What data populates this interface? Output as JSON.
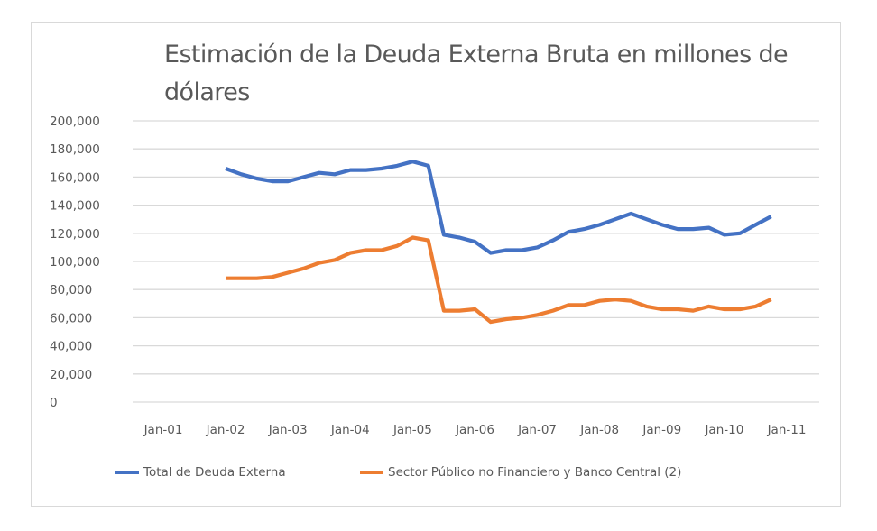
{
  "chart_data": {
    "type": "line",
    "title": "Estimación de la Deuda Externa Bruta en millones de dólares",
    "xlabel": "",
    "ylabel": "",
    "ylim": [
      0,
      200000
    ],
    "xlim": [
      2001.0,
      2011.0
    ],
    "grid": true,
    "legend_position": "bottom",
    "y_ticks": [
      {
        "value": 0,
        "label": "0"
      },
      {
        "value": 20000,
        "label": "20,000"
      },
      {
        "value": 40000,
        "label": "40,000"
      },
      {
        "value": 60000,
        "label": "60,000"
      },
      {
        "value": 80000,
        "label": "80,000"
      },
      {
        "value": 100000,
        "label": "100,000"
      },
      {
        "value": 120000,
        "label": "120,000"
      },
      {
        "value": 140000,
        "label": "140,000"
      },
      {
        "value": 160000,
        "label": "160,000"
      },
      {
        "value": 180000,
        "label": "180,000"
      },
      {
        "value": 200000,
        "label": "200,000"
      }
    ],
    "x_ticks": [
      {
        "value": 2001,
        "label": "Jan-01"
      },
      {
        "value": 2002,
        "label": "Jan-02"
      },
      {
        "value": 2003,
        "label": "Jan-03"
      },
      {
        "value": 2004,
        "label": "Jan-04"
      },
      {
        "value": 2005,
        "label": "Jan-05"
      },
      {
        "value": 2006,
        "label": "Jan-06"
      },
      {
        "value": 2007,
        "label": "Jan-07"
      },
      {
        "value": 2008,
        "label": "Jan-08"
      },
      {
        "value": 2009,
        "label": "Jan-09"
      },
      {
        "value": 2010,
        "label": "Jan-10"
      },
      {
        "value": 2011,
        "label": "Jan-11"
      }
    ],
    "x": [
      2002.0,
      2002.25,
      2002.5,
      2002.75,
      2003.0,
      2003.25,
      2003.5,
      2003.75,
      2004.0,
      2004.25,
      2004.5,
      2004.75,
      2005.0,
      2005.25,
      2005.5,
      2005.75,
      2006.0,
      2006.25,
      2006.5,
      2006.75,
      2007.0,
      2007.25,
      2007.5,
      2007.75,
      2008.0,
      2008.25,
      2008.5,
      2008.75,
      2009.0,
      2009.25,
      2009.5,
      2009.75,
      2010.0,
      2010.25,
      2010.5,
      2010.75
    ],
    "series": [
      {
        "name": "Total de Deuda Externa",
        "color": "#4472c4",
        "values": [
          166000,
          162000,
          159000,
          157000,
          157000,
          160000,
          163000,
          162000,
          165000,
          165000,
          166000,
          168000,
          171000,
          168000,
          119000,
          117000,
          114000,
          106000,
          108000,
          108000,
          110000,
          115000,
          121000,
          123000,
          126000,
          130000,
          134000,
          130000,
          126000,
          123000,
          123000,
          124000,
          119000,
          120000,
          126000,
          132000
        ]
      },
      {
        "name": "Sector Público no Financiero y Banco Central (2)",
        "color": "#ed7d31",
        "values": [
          88000,
          88000,
          88000,
          89000,
          92000,
          95000,
          99000,
          101000,
          106000,
          108000,
          108000,
          111000,
          117000,
          115000,
          65000,
          65000,
          66000,
          57000,
          59000,
          60000,
          62000,
          65000,
          69000,
          69000,
          72000,
          73000,
          72000,
          68000,
          66000,
          66000,
          65000,
          68000,
          66000,
          66000,
          68000,
          73000
        ]
      }
    ]
  },
  "colors": {
    "gridline": "#d9d9d9",
    "text": "#595959",
    "frame": "#d9d9d9"
  }
}
